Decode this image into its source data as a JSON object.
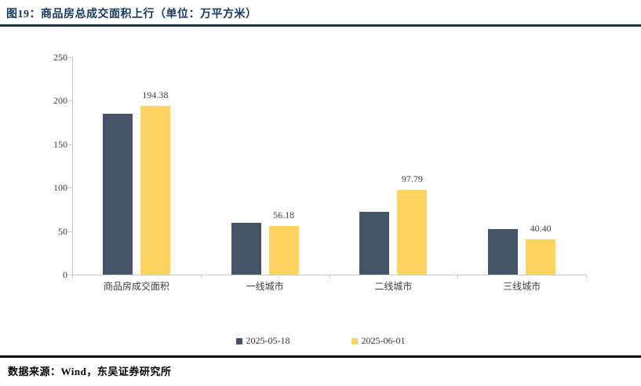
{
  "header": {
    "title": "图19：商品房总成交面积上行（单位：万平方米）"
  },
  "footer": {
    "source": "数据来源：Wind，东吴证券研究所"
  },
  "colors": {
    "title": "#17375E",
    "rule_top": "#1F3150",
    "rule_bottom": "#000000",
    "axis": "#C9C9C9",
    "text": "#3F3F3F",
    "series_dark": "#465468",
    "series_yellow": "#FCD45F"
  },
  "chart_data": {
    "type": "bar",
    "title": "商品房总成交面积上行",
    "unit": "万平方米",
    "categories": [
      "商品房成交面积",
      "一线城市",
      "二线城市",
      "三线城市"
    ],
    "series": [
      {
        "name": "2025-05-18",
        "color": "#465468",
        "values": [
          185,
          60,
          72,
          52
        ],
        "data_labels": false
      },
      {
        "name": "2025-06-01",
        "color": "#FCD45F",
        "values": [
          194.38,
          56.18,
          97.79,
          40.4
        ],
        "data_labels": true
      }
    ],
    "ylim": [
      0,
      250
    ],
    "yticks": [
      0,
      50,
      100,
      150,
      200,
      250
    ],
    "grid": false,
    "legend_position": "bottom",
    "xlabel": "",
    "ylabel": ""
  }
}
